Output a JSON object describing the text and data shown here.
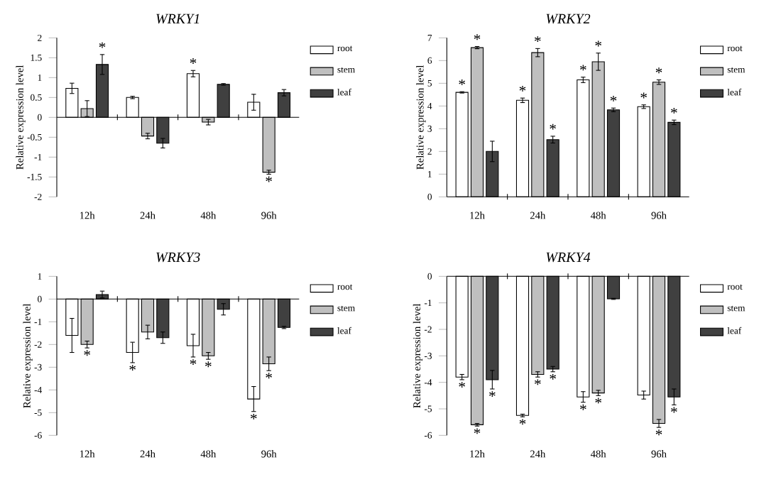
{
  "chart_data": [
    {
      "type": "bar",
      "title": "WRKY1",
      "ylabel": "Relative expression level",
      "categories": [
        "12h",
        "24h",
        "48h",
        "96h"
      ],
      "ylim": [
        -2,
        2
      ],
      "yticks": [
        -2,
        -1.5,
        -1,
        -0.5,
        0,
        0.5,
        1,
        1.5,
        2
      ],
      "legend": "top right",
      "series": [
        {
          "name": "root",
          "color": "#ffffff",
          "values": [
            0.73,
            0.5,
            1.1,
            0.38
          ],
          "errors": [
            0.13,
            0.03,
            0.08,
            0.2
          ],
          "value_labels": [
            null,
            null,
            "*",
            null
          ]
        },
        {
          "name": "stem",
          "color": "#bfbfbf",
          "values": [
            0.22,
            -0.47,
            -0.12,
            -1.38
          ],
          "errors": [
            0.2,
            0.07,
            0.07,
            0.05
          ],
          "value_labels": [
            null,
            null,
            null,
            "*"
          ]
        },
        {
          "name": "leaf",
          "color": "#404040",
          "values": [
            1.33,
            -0.65,
            0.83,
            0.62
          ],
          "errors": [
            0.25,
            0.12,
            0.02,
            0.08
          ],
          "value_labels": [
            "*",
            null,
            null,
            null
          ]
        }
      ]
    },
    {
      "type": "bar",
      "title": "WRKY2",
      "ylabel": "Relative expression level",
      "categories": [
        "12h",
        "24h",
        "48h",
        "96h"
      ],
      "ylim": [
        0,
        7
      ],
      "yticks": [
        0,
        1,
        2,
        3,
        4,
        5,
        6,
        7
      ],
      "legend": "top right",
      "series": [
        {
          "name": "root",
          "color": "#ffffff",
          "values": [
            4.6,
            4.25,
            5.15,
            3.97
          ],
          "errors": [
            0.03,
            0.1,
            0.12,
            0.08
          ],
          "value_labels": [
            "*",
            "*",
            "*",
            "*"
          ]
        },
        {
          "name": "stem",
          "color": "#bfbfbf",
          "values": [
            6.57,
            6.35,
            5.95,
            5.05
          ],
          "errors": [
            0.05,
            0.18,
            0.38,
            0.1
          ],
          "value_labels": [
            "*",
            "*",
            "*",
            "*"
          ]
        },
        {
          "name": "leaf",
          "color": "#404040",
          "values": [
            2.0,
            2.52,
            3.83,
            3.28
          ],
          "errors": [
            0.45,
            0.15,
            0.08,
            0.1
          ],
          "value_labels": [
            null,
            "*",
            "*",
            "*"
          ]
        }
      ]
    },
    {
      "type": "bar",
      "title": "WRKY3",
      "ylabel": "Relative expression level",
      "categories": [
        "12h",
        "24h",
        "48h",
        "96h"
      ],
      "ylim": [
        -6,
        1
      ],
      "yticks": [
        -6,
        -5,
        -4,
        -3,
        -2,
        -1,
        0,
        1
      ],
      "legend": "top right",
      "series": [
        {
          "name": "root",
          "color": "#ffffff",
          "values": [
            -1.6,
            -2.35,
            -2.05,
            -4.4
          ],
          "errors": [
            0.75,
            0.45,
            0.5,
            0.55
          ],
          "value_labels": [
            null,
            "*",
            "*",
            "*"
          ]
        },
        {
          "name": "stem",
          "color": "#bfbfbf",
          "values": [
            -2.0,
            -1.45,
            -2.5,
            -2.85
          ],
          "errors": [
            0.15,
            0.3,
            0.15,
            0.3
          ],
          "value_labels": [
            "*",
            null,
            "*",
            "*"
          ]
        },
        {
          "name": "leaf",
          "color": "#404040",
          "values": [
            0.2,
            -1.7,
            -0.45,
            -1.25
          ],
          "errors": [
            0.15,
            0.25,
            0.25,
            0.05
          ],
          "value_labels": [
            null,
            null,
            null,
            null
          ]
        }
      ]
    },
    {
      "type": "bar",
      "title": "WRKY4",
      "ylabel": "Relative expression level",
      "categories": [
        "12h",
        "24h",
        "48h",
        "96h"
      ],
      "ylim": [
        -6,
        0
      ],
      "yticks": [
        -6,
        -5,
        -4,
        -3,
        -2,
        -1,
        0
      ],
      "legend": "top right",
      "series": [
        {
          "name": "root",
          "color": "#ffffff",
          "values": [
            -3.8,
            -5.25,
            -4.55,
            -4.48
          ],
          "errors": [
            0.1,
            0.05,
            0.2,
            0.15
          ],
          "value_labels": [
            "*",
            "*",
            "*",
            null
          ]
        },
        {
          "name": "stem",
          "color": "#bfbfbf",
          "values": [
            -5.6,
            -3.7,
            -4.4,
            -5.55
          ],
          "errors": [
            0.05,
            0.1,
            0.1,
            0.15
          ],
          "value_labels": [
            "*",
            "*",
            "*",
            "*"
          ]
        },
        {
          "name": "leaf",
          "color": "#404040",
          "values": [
            -3.9,
            -3.5,
            -0.85,
            -4.55
          ],
          "errors": [
            0.35,
            0.1,
            0.02,
            0.3
          ],
          "value_labels": [
            "*",
            "*",
            null,
            "*"
          ]
        }
      ]
    }
  ]
}
